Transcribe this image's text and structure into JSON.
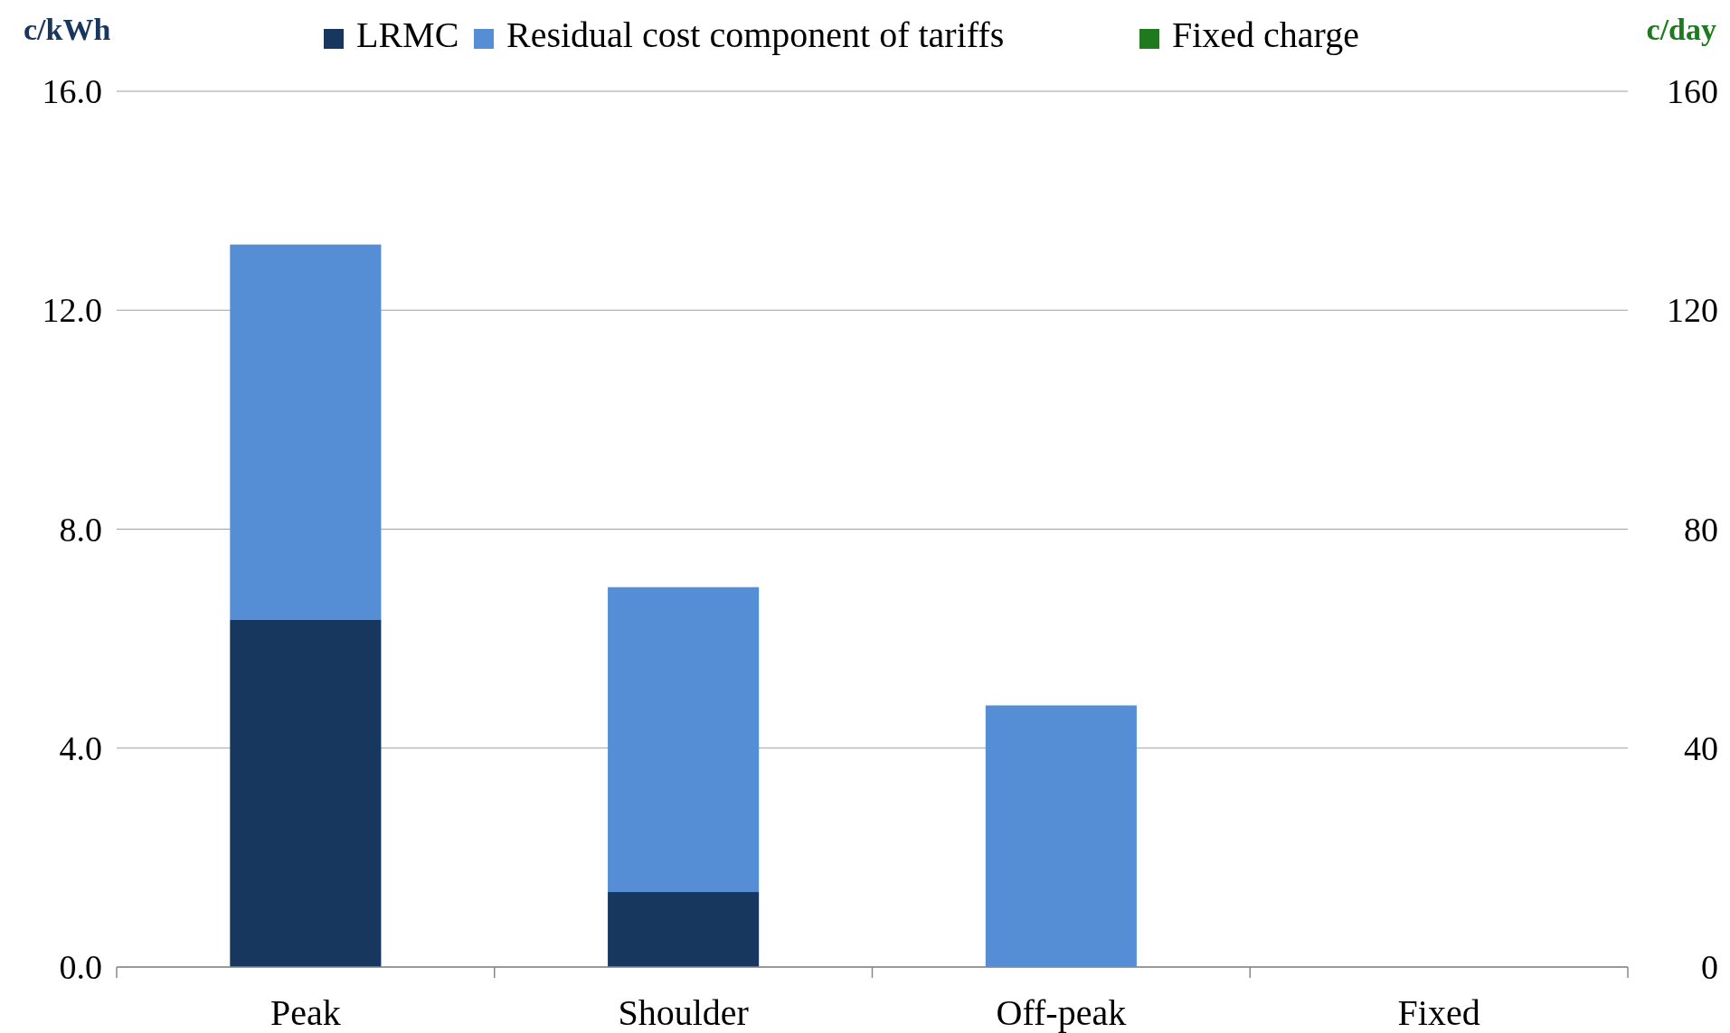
{
  "chart_data": {
    "type": "bar",
    "stacked": true,
    "ylabel": "c/kWh",
    "y2label": "c/day",
    "categories": [
      "Peak",
      "Shoulder",
      "Off-peak",
      "Fixed"
    ],
    "series": [
      {
        "name": "LRMC",
        "color": "#17375e",
        "values": [
          6.35,
          1.37,
          0,
          null
        ]
      },
      {
        "name": "Residual cost component of tariffs",
        "color": "#558ed5",
        "values": [
          6.85,
          5.57,
          4.78,
          null
        ]
      },
      {
        "name": "Fixed charge",
        "color": "#1f7a1f",
        "values": [
          null,
          null,
          null,
          0
        ]
      }
    ],
    "ylim": [
      0,
      16
    ],
    "yticks": [
      {
        "value": 0,
        "label": "0.0"
      },
      {
        "value": 4,
        "label": "4.0"
      },
      {
        "value": 8,
        "label": "8.0"
      },
      {
        "value": 12,
        "label": "12.0"
      },
      {
        "value": 16,
        "label": "16.0"
      }
    ],
    "y2lim": [
      0,
      160
    ],
    "y2ticks": [
      0,
      40,
      80,
      120,
      160
    ],
    "grid": "y",
    "legend": "top"
  }
}
